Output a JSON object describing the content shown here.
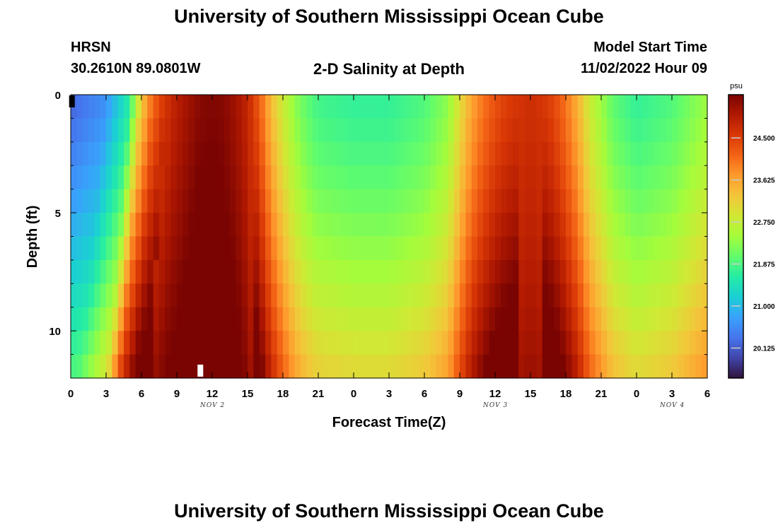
{
  "titles": {
    "top": "University of Southern Mississippi Ocean Cube",
    "bottom": "University of Southern Mississippi Ocean Cube"
  },
  "station": {
    "name": "HRSN",
    "coords": "30.2610N  89.0801W"
  },
  "plot_title": "2-D Salinity at Depth",
  "model_start": {
    "label": "Model Start Time",
    "value": "11/02/2022 Hour 09"
  },
  "chart_data": {
    "type": "heatmap",
    "title": "2-D Salinity at Depth",
    "xlabel": "Forecast Time(Z)",
    "ylabel": "Depth (ft)",
    "units": "psu",
    "x_hours": [
      0,
      3,
      6,
      9,
      12,
      15,
      18,
      21,
      24,
      27,
      30,
      33,
      36,
      39,
      42,
      45,
      48,
      51,
      54
    ],
    "x_tick_labels": [
      "0",
      "3",
      "6",
      "9",
      "12",
      "15",
      "18",
      "21",
      "0",
      "3",
      "6",
      "9",
      "12",
      "15",
      "18",
      "21",
      "0",
      "3",
      "6"
    ],
    "x_range_hours": [
      0,
      54
    ],
    "date_labels": [
      {
        "text": "NOV 2",
        "hour": 12
      },
      {
        "text": "NOV 3",
        "hour": 36
      },
      {
        "text": "NOV 4",
        "hour": 51
      }
    ],
    "y_range_ft": [
      0,
      12
    ],
    "y_ticks": [
      0,
      5,
      10
    ],
    "y_tick_labels": [
      "0",
      "5",
      "10"
    ],
    "depths_ft": [
      0.5,
      1.5,
      2.5,
      3.5,
      4.5,
      5.5,
      6.5,
      7.5,
      8.5,
      9.5,
      10.5,
      11.5
    ],
    "surface_profile_psu": {
      "hours": [
        0,
        3,
        5,
        6,
        7,
        8,
        9,
        10,
        11,
        12,
        13,
        14,
        15,
        16,
        17,
        18,
        19,
        20,
        21,
        24,
        27,
        30,
        32,
        33,
        34,
        35,
        36,
        37,
        38,
        39,
        40,
        41,
        42,
        43,
        44,
        46,
        48,
        51,
        54
      ],
      "values": [
        20.2,
        20.6,
        21.6,
        23.2,
        24.1,
        24.6,
        24.9,
        25.1,
        25.3,
        25.35,
        25.3,
        25.1,
        24.8,
        24.2,
        23.4,
        22.8,
        22.3,
        22.0,
        21.8,
        21.7,
        21.7,
        21.9,
        22.3,
        23.0,
        23.6,
        24.0,
        24.3,
        24.5,
        24.6,
        24.7,
        24.6,
        24.4,
        24.0,
        23.5,
        22.8,
        22.0,
        21.7,
        21.9,
        22.4
      ]
    },
    "bottom_increase_psu": 1.4,
    "colorbar": {
      "units": "psu",
      "min": 19.5,
      "max": 25.4,
      "ticks": [
        24.5,
        23.625,
        22.75,
        21.875,
        21.0,
        20.125
      ],
      "tick_labels": [
        "24.500",
        "23.625",
        "22.750",
        "21.875",
        "21.000",
        "20.125"
      ]
    },
    "masked_cells": [
      {
        "hour": 0.1,
        "depth_ft": 0.3,
        "color": "#000000"
      },
      {
        "hour": 11,
        "depth_ft": 11.7,
        "color": "#ffffff"
      }
    ],
    "colormap_stops": [
      "#30123b",
      "#4145ab",
      "#4675ed",
      "#39a2fc",
      "#1bcfd4",
      "#24eca6",
      "#61fc6c",
      "#a4fc3b",
      "#d1e834",
      "#f3c63a",
      "#fe9b2d",
      "#f36315",
      "#d93806",
      "#b11901",
      "#7a0402"
    ]
  }
}
